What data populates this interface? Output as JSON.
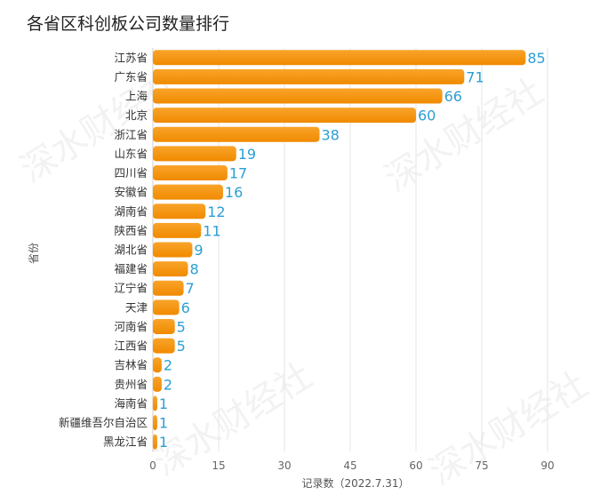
{
  "chart_data": {
    "type": "bar",
    "orientation": "horizontal",
    "title": "各省区科创板公司数量排行",
    "xlabel": "记录数（2022.7.31）",
    "ylabel": "省份",
    "categories": [
      "江苏省",
      "广东省",
      "上海",
      "北京",
      "浙江省",
      "山东省",
      "四川省",
      "安徽省",
      "湖南省",
      "陕西省",
      "湖北省",
      "福建省",
      "辽宁省",
      "天津",
      "河南省",
      "江西省",
      "吉林省",
      "贵州省",
      "海南省",
      "新疆维吾尔自治区",
      "黑龙江省"
    ],
    "values": [
      85,
      71,
      66,
      60,
      38,
      19,
      17,
      16,
      12,
      11,
      9,
      8,
      7,
      6,
      5,
      5,
      2,
      2,
      1,
      1,
      1
    ],
    "xlim": [
      0,
      90
    ],
    "xticks": [
      0,
      15,
      30,
      45,
      60,
      75,
      90
    ],
    "grid": true,
    "bar_color_start": "#F9A42A",
    "bar_color_end": "#F08A00",
    "value_label_color": "#2B9FD4"
  },
  "watermark": "深水财经社"
}
